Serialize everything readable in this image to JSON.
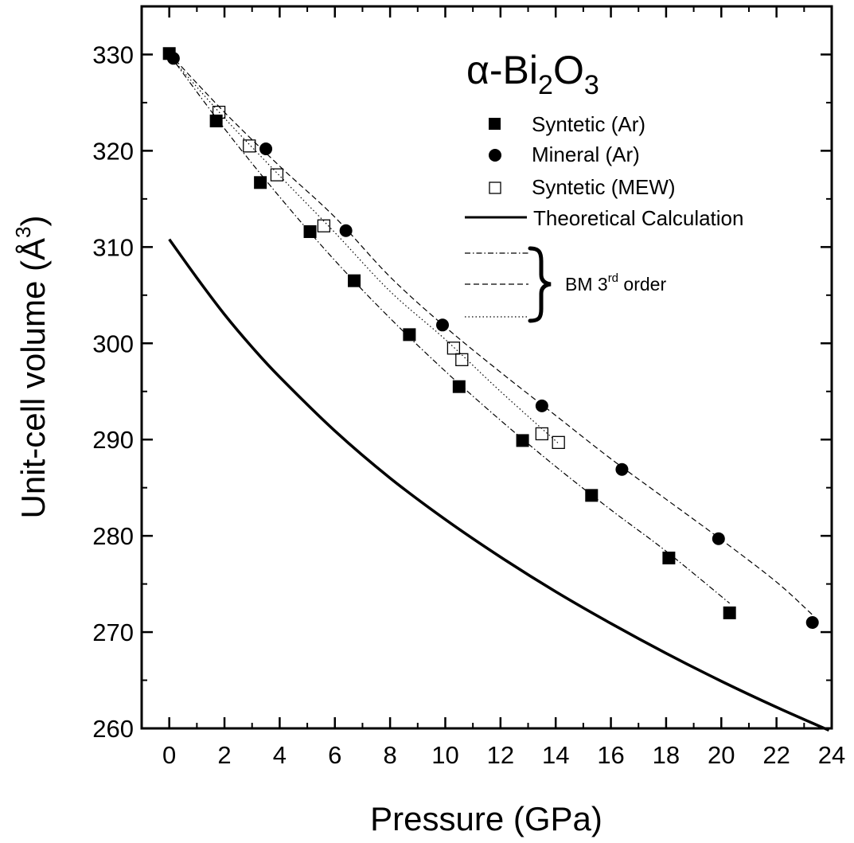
{
  "chart_data": {
    "type": "scatter",
    "title": "α-Bi2O3",
    "xlabel": "Pressure (GPa)",
    "ylabel": "Unit-cell volume (Å3)",
    "xlim": [
      -1,
      24
    ],
    "ylim": [
      260,
      335
    ],
    "xticks": [
      0,
      2,
      4,
      6,
      8,
      10,
      12,
      14,
      16,
      18,
      20,
      22,
      24
    ],
    "yticks": [
      260,
      270,
      280,
      290,
      300,
      310,
      320,
      330
    ],
    "legend_position": "top-right",
    "series": [
      {
        "name": "Syntetic (Ar)",
        "marker": "filled-square",
        "x": [
          0.0,
          1.7,
          3.3,
          5.1,
          6.7,
          8.7,
          10.5,
          12.8,
          15.3,
          18.1,
          20.3
        ],
        "y": [
          330.1,
          323.1,
          316.7,
          311.6,
          306.5,
          300.9,
          295.5,
          289.9,
          284.2,
          277.7,
          272.0
        ]
      },
      {
        "name": "Mineral (Ar)",
        "marker": "filled-circle",
        "x": [
          0.15,
          3.5,
          6.4,
          9.9,
          13.5,
          16.4,
          19.9,
          23.3
        ],
        "y": [
          329.6,
          320.2,
          311.7,
          301.9,
          293.5,
          286.9,
          279.7,
          271.0
        ]
      },
      {
        "name": "Syntetic (MEW)",
        "marker": "open-square",
        "x": [
          1.8,
          2.9,
          3.9,
          5.6,
          10.3,
          10.6,
          13.5,
          14.1
        ],
        "y": [
          324.0,
          320.5,
          317.5,
          312.2,
          299.5,
          298.3,
          290.6,
          289.7
        ]
      },
      {
        "name": "Theoretical Calculation",
        "marker": "solid-line",
        "x": [
          0,
          1,
          2,
          3,
          4,
          6,
          8,
          10,
          12,
          14,
          16,
          18,
          20,
          22,
          23.9
        ],
        "y": [
          310.8,
          306.8,
          303.0,
          299.6,
          296.5,
          290.9,
          286.0,
          281.7,
          277.8,
          274.2,
          270.9,
          267.8,
          264.9,
          262.2,
          259.8
        ]
      }
    ],
    "fits": [
      {
        "style": "dash-dot",
        "of": "Syntetic (Ar)",
        "x": [
          0,
          2,
          4,
          6,
          8,
          10,
          12,
          14,
          16,
          18,
          20.3
        ],
        "y": [
          330.0,
          322.3,
          315.2,
          308.6,
          302.6,
          297.1,
          292.0,
          287.2,
          282.7,
          278.4,
          273.0
        ]
      },
      {
        "style": "dashed",
        "of": "Mineral (Ar)",
        "x": [
          0,
          2,
          4,
          6,
          8,
          10,
          12,
          14,
          16,
          18,
          20,
          22,
          23.3
        ],
        "y": [
          330.1,
          324.0,
          318.4,
          313.1,
          306.9,
          301.7,
          297.0,
          292.5,
          288.0,
          283.8,
          279.6,
          275.2,
          271.8
        ]
      },
      {
        "style": "dotted",
        "of": "Syntetic (MEW)",
        "x": [
          0,
          2,
          4,
          6,
          8,
          10,
          12,
          14.1
        ],
        "y": [
          329.9,
          323.4,
          317.4,
          311.5,
          305.4,
          300.4,
          295.0,
          289.6
        ]
      }
    ],
    "bm_label": "BM 3rd order"
  },
  "legend": {
    "title_prefix": "α-Bi",
    "title_sub1": "2",
    "title_mid": "O",
    "title_sub2": "3",
    "items": [
      "Syntetic (Ar)",
      "Mineral (Ar)",
      "Syntetic (MEW)",
      "Theoretical Calculation"
    ],
    "bm_main": "BM 3",
    "bm_sup": "rd",
    "bm_tail": " order"
  },
  "axes": {
    "x_title": "Pressure (GPa)",
    "y_title_main": "Unit-cell volume (Å",
    "y_title_sup": "3",
    "y_title_end": ")"
  }
}
